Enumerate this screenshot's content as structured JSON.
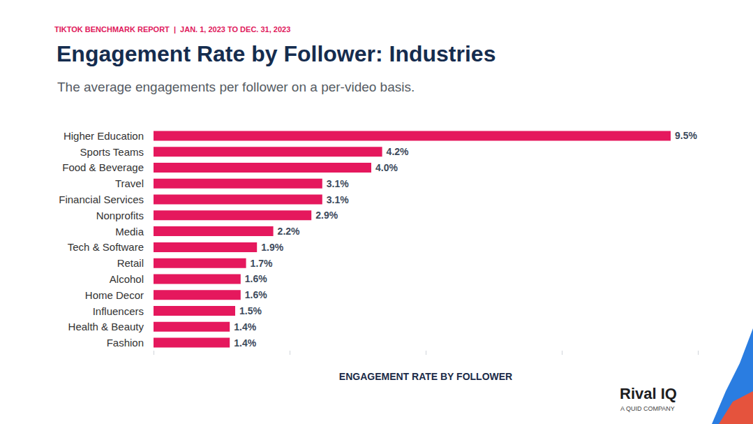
{
  "chart_data": {
    "type": "bar",
    "orientation": "horizontal",
    "title": "Engagement Rate by Follower: Industries",
    "subtitle": "The average engagements per follower on a per-video basis.",
    "x_label": "ENGAGEMENT RATE BY FOLLOWER",
    "annotations": [
      "TIKTOK BENCHMARK REPORT  |  JAN. 1, 2023 TO DEC. 31, 2023",
      "Rival IQ",
      "A QUID COMPANY"
    ],
    "categories": [
      "Higher Education",
      "Sports Teams",
      "Food & Beverage",
      "Travel",
      "Financial Services",
      "Nonprofits",
      "Media",
      "Tech & Software",
      "Retail",
      "Alcohol",
      "Home Decor",
      "Influencers",
      "Health & Beauty",
      "Fashion"
    ],
    "values": [
      9.5,
      4.2,
      4.0,
      3.1,
      3.1,
      2.9,
      2.2,
      1.9,
      1.7,
      1.6,
      1.6,
      1.5,
      1.4,
      1.4
    ],
    "value_labels": [
      "9.5%",
      "4.2%",
      "4.0%",
      "3.1%",
      "3.1%",
      "2.9%",
      "2.2%",
      "1.9%",
      "1.7%",
      "1.6%",
      "1.6%",
      "1.5%",
      "1.4%",
      "1.4%"
    ],
    "color": "#e5185d",
    "xlim": [
      0,
      10
    ],
    "xticks": [
      0,
      2.5,
      5,
      7.5,
      10
    ],
    "grid": false,
    "data_labels": true,
    "tick_labels": "y"
  }
}
